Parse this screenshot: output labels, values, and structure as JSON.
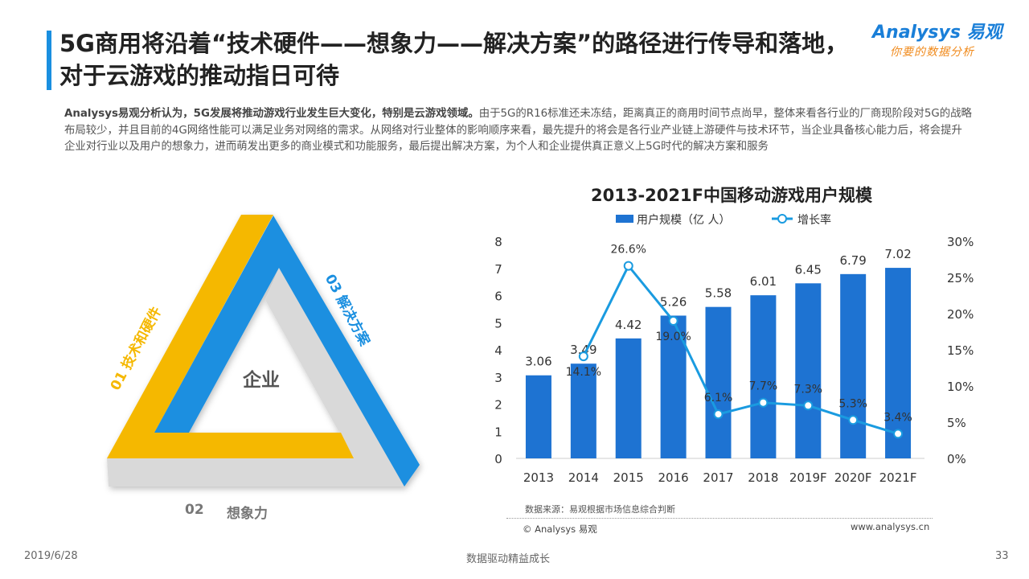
{
  "header": {
    "title": "5G商用将沿着“技术硬件——想象力——解决方案”的路径进行传导和落地，对于云游戏的推动指日可待",
    "logo": {
      "brand": "Analysys 易观",
      "slogan": "你要的数据分析"
    }
  },
  "body": {
    "lead_bold": "Analysys易观分析认为，5G发展将推动游戏行业发生巨大变化，特别是云游戏领域。",
    "text": "由于5G的R16标准还未冻结，距离真正的商用时间节点尚早，整体来看各行业的厂商现阶段对5G的战略布局较少，并且目前的4G网络性能可以满足业务对网络的需求。从网络对行业整体的影响顺序来看，最先提升的将会是各行业产业链上游硬件与技术环节，当企业具备核心能力后，将会提升企业对行业以及用户的想象力，进而萌发出更多的商业模式和功能服务，最后提出解决方案，为个人和企业提供真正意义上5G时代的解决方案和服务"
  },
  "triangle": {
    "center": "企业",
    "side1": "01   技术和硬件",
    "side2_num": "02",
    "side2": "想象力",
    "side3": "03   解决方案",
    "colors": {
      "side1": "#F5B800",
      "side2": "#D9D9D9",
      "side3": "#1A8FE0"
    }
  },
  "chart_data": {
    "type": "bar+line",
    "title": "2013-2021F中国移动游戏用户规模",
    "categories": [
      "2013",
      "2014",
      "2015",
      "2016",
      "2017",
      "2018",
      "2019F",
      "2020F",
      "2021F"
    ],
    "series": [
      {
        "name": "用户规模（亿 人）",
        "type": "bar",
        "axis": "left",
        "color": "#1E73D2",
        "values": [
          3.06,
          3.49,
          4.42,
          5.26,
          5.58,
          6.01,
          6.45,
          6.79,
          7.02
        ],
        "labels": [
          "3.06",
          "3.49",
          "4.42",
          "5.26",
          "5.58",
          "6.01",
          "6.45",
          "6.79",
          "7.02"
        ]
      },
      {
        "name": "增长率",
        "type": "line",
        "axis": "right",
        "color": "#1A9BE0",
        "values": [
          null,
          14.1,
          26.6,
          19.0,
          6.1,
          7.7,
          7.3,
          5.3,
          3.4
        ],
        "labels": [
          "",
          "14.1%",
          "26.6%",
          "19.0%",
          "6.1%",
          "7.7%",
          "7.3%",
          "5.3%",
          "3.4%"
        ]
      }
    ],
    "ylim_left": [
      0,
      8
    ],
    "yticks_left": [
      "0",
      "1",
      "2",
      "3",
      "4",
      "5",
      "6",
      "7",
      "8"
    ],
    "ylim_right": [
      0,
      30
    ],
    "yticks_right": [
      "0%",
      "5%",
      "10%",
      "15%",
      "20%",
      "25%",
      "30%"
    ],
    "legend_position": "top",
    "grid": false
  },
  "chart_footer": {
    "source": "数据来源：易观根据市场信息综合判断",
    "copyright": "© Analysys 易观",
    "website": "www.analysys.cn"
  },
  "footer": {
    "date": "2019/6/28",
    "slogan": "数据驱动精益成长",
    "page": "33"
  }
}
